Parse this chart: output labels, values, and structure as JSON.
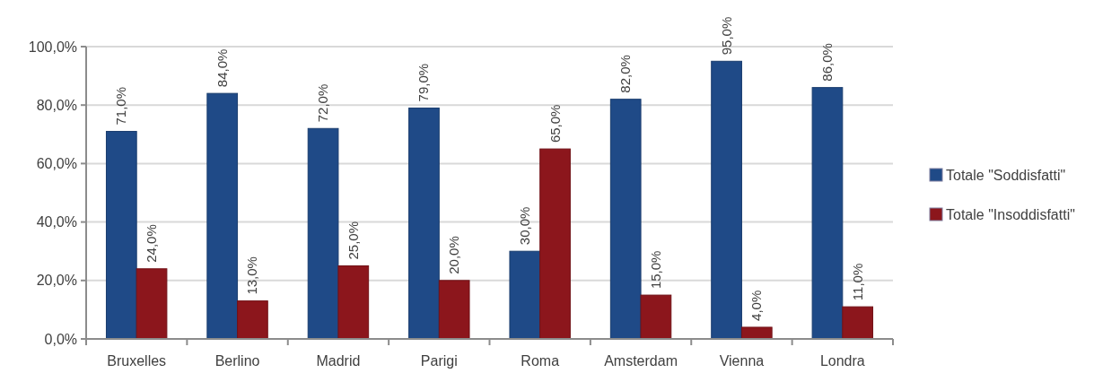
{
  "chart_data": {
    "type": "bar",
    "categories": [
      "Bruxelles",
      "Berlino",
      "Madrid",
      "Parigi",
      "Roma",
      "Amsterdam",
      "Vienna",
      "Londra"
    ],
    "series": [
      {
        "name": "Totale \"Soddisfatti\"",
        "color": "#1f4a87",
        "values": [
          71,
          84,
          72,
          79,
          30,
          82,
          95,
          86
        ],
        "value_labels": [
          "71,0%",
          "84,0%",
          "72,0%",
          "79,0%",
          "30,0%",
          "82,0%",
          "95,0%",
          "86,0%"
        ]
      },
      {
        "name": "Totale \"Insoddisfatti\"",
        "color": "#8c161c",
        "values": [
          24,
          13,
          25,
          20,
          65,
          15,
          4,
          11
        ],
        "value_labels": [
          "24,0%",
          "13,0%",
          "25,0%",
          "20,0%",
          "65,0%",
          "15,0%",
          "4,0%",
          "11,0%"
        ]
      }
    ],
    "ylim": [
      0,
      100
    ],
    "yticks": [
      {
        "value": 0,
        "label": "0,0%"
      },
      {
        "value": 20,
        "label": "20,0%"
      },
      {
        "value": 40,
        "label": "40,0%"
      },
      {
        "value": 60,
        "label": "60,0%"
      },
      {
        "value": 80,
        "label": "80,0%"
      },
      {
        "value": 100,
        "label": "100,0%"
      }
    ],
    "grid": "y",
    "legend": "right"
  }
}
